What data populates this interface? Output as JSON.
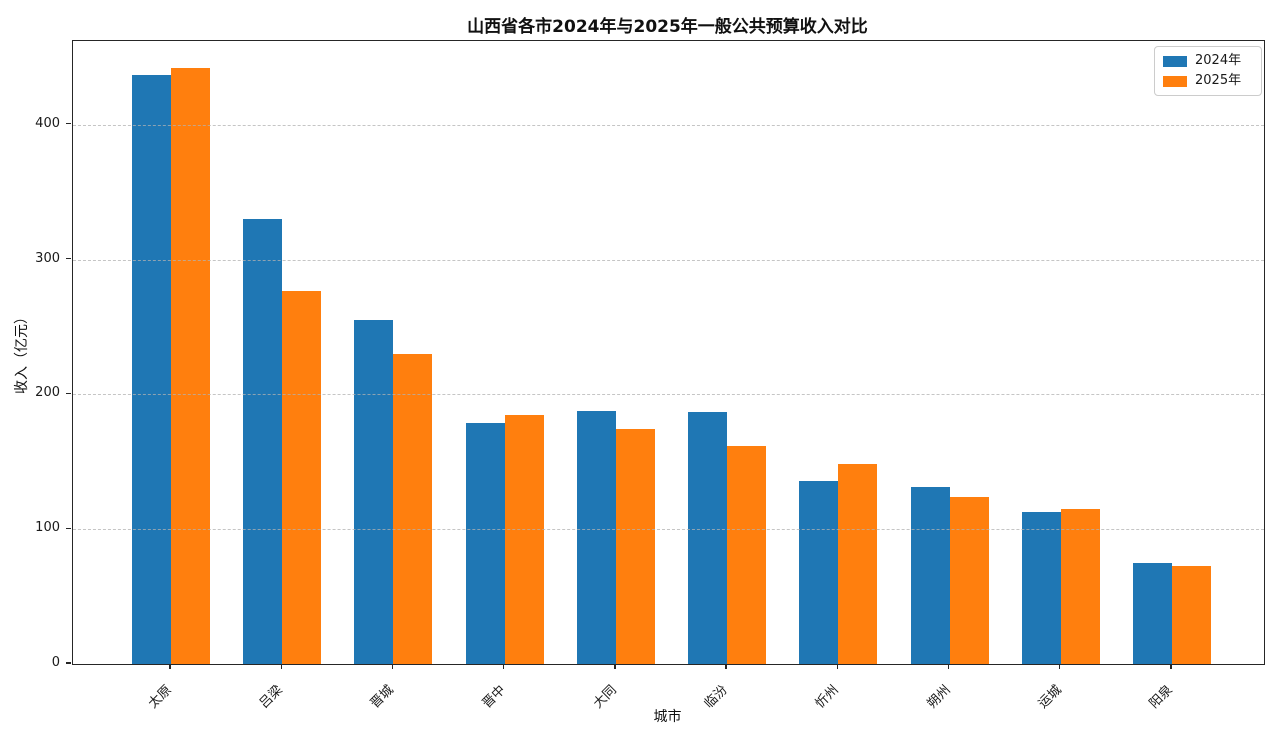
{
  "chart_data": {
    "type": "bar",
    "title": "山西省各市2024年与2025年一般公共预算收入对比",
    "xlabel": "城市",
    "ylabel": "收入（亿元）",
    "categories": [
      "太原",
      "吕梁",
      "晋城",
      "晋中",
      "大同",
      "临汾",
      "忻州",
      "朔州",
      "运城",
      "阳泉"
    ],
    "category_ids": [
      "taiyuan",
      "lvliang",
      "jincheng",
      "jinzhong",
      "datong",
      "linfen",
      "xinzhou",
      "shuozhou",
      "yuncheng",
      "yangquan"
    ],
    "series": [
      {
        "id": "2024",
        "name": "2024年",
        "color": "#1f77b4",
        "values": [
          437,
          330,
          255,
          179,
          188,
          187,
          136,
          131,
          113,
          75
        ]
      },
      {
        "id": "2025",
        "name": "2025年",
        "color": "#ff7f0e",
        "values": [
          442,
          277,
          230,
          185,
          174,
          162,
          148,
          124,
          115,
          73
        ]
      }
    ],
    "yticks": [
      0,
      100,
      200,
      300,
      400
    ],
    "ytick_labels": [
      "0",
      "100",
      "200",
      "300",
      "400"
    ],
    "ylim": [
      0,
      462
    ],
    "grid": "horizontal-dashed, drawn above bars",
    "legend_position": "upper-right",
    "bar_unit": "亿元",
    "spine_color": "#262626",
    "background_color": "#ffffff"
  }
}
